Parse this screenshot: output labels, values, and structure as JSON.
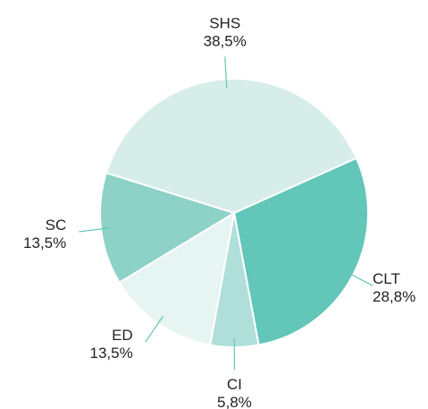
{
  "chart_data": {
    "type": "pie",
    "categories": [
      "SHS",
      "CLT",
      "CI",
      "ED",
      "SC"
    ],
    "values": [
      38.5,
      28.8,
      5.8,
      13.5,
      13.5
    ],
    "value_labels": [
      "38,5%",
      "28,8%",
      "5,8%",
      "13,5%",
      "13,5%"
    ],
    "colors": [
      "#d6ede9",
      "#62c6b9",
      "#b0ded8",
      "#e6f4f2",
      "#8dd1c7"
    ]
  }
}
